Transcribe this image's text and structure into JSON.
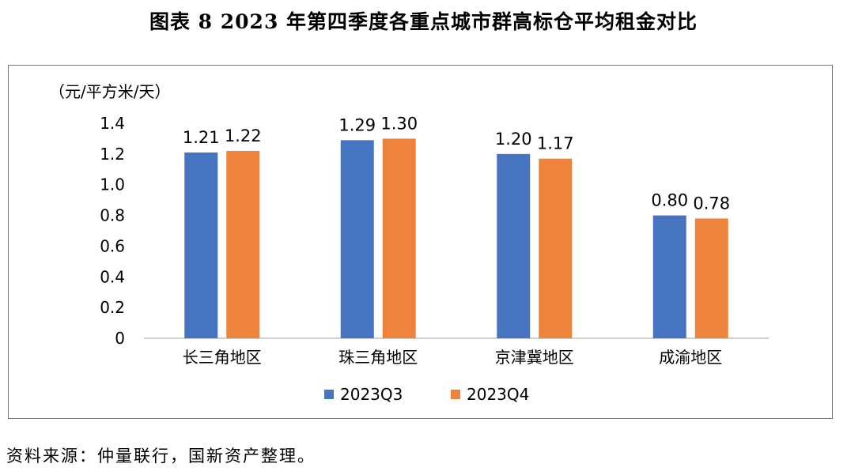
{
  "title": "图表 8  2023 年第四季度各重点城市群高标仓平均租金对比",
  "source_note": "资料来源：仲量联行，国新资产整理。",
  "chart_data": {
    "type": "bar",
    "unit_label": "（元/平方米/天）",
    "categories": [
      "长三角地区",
      "珠三角地区",
      "京津冀地区",
      "成渝地区"
    ],
    "series": [
      {
        "name": "2023Q3",
        "color": "#4674c1",
        "values": [
          1.21,
          1.29,
          1.2,
          0.8
        ],
        "labels": [
          "1.21",
          "1.29",
          "1.20",
          "0.80"
        ]
      },
      {
        "name": "2023Q4",
        "color": "#ee833c",
        "values": [
          1.22,
          1.3,
          1.17,
          0.78
        ],
        "labels": [
          "1.22",
          "1.30",
          "1.17",
          "0.78"
        ]
      }
    ],
    "yticks": [
      "0",
      "0.2",
      "0.4",
      "0.6",
      "0.8",
      "1.0",
      "1.2",
      "1.4"
    ],
    "ylim": [
      0,
      1.4
    ],
    "grid": false,
    "legend_position": "bottom"
  }
}
